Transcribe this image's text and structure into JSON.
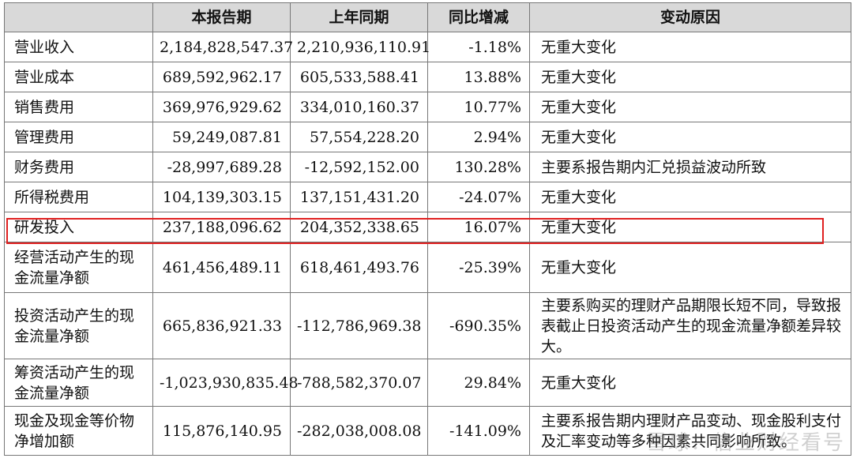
{
  "headers": [
    "",
    "本报告期",
    "上年同期",
    "同比增减",
    "变动原因"
  ],
  "rows": [
    {
      "item": "营业收入",
      "current": "2,184,828,547.37",
      "prior": "2,210,936,110.91",
      "change": "-1.18%",
      "reason": "无重大变化"
    },
    {
      "item": "营业成本",
      "current": "689,592,962.17",
      "prior": "605,533,588.41",
      "change": "13.88%",
      "reason": "无重大变化"
    },
    {
      "item": "销售费用",
      "current": "369,976,929.62",
      "prior": "334,010,160.37",
      "change": "10.77%",
      "reason": "无重大变化"
    },
    {
      "item": "管理费用",
      "current": "59,249,087.81",
      "prior": "57,554,228.20",
      "change": "2.94%",
      "reason": "无重大变化"
    },
    {
      "item": "财务费用",
      "current": "-28,997,689.28",
      "prior": "-12,592,152.00",
      "change": "130.28%",
      "reason": "主要系报告期内汇兑损益波动所致"
    },
    {
      "item": "所得税费用",
      "current": "104,139,303.15",
      "prior": "137,151,431.20",
      "change": "-24.07%",
      "reason": "无重大变化"
    },
    {
      "item": "研发投入",
      "current": "237,188,096.62",
      "prior": "204,352,338.65",
      "change": "16.07%",
      "reason": "无重大变化"
    },
    {
      "item": "经营活动产生的现金流量净额",
      "current": "461,456,489.11",
      "prior": "618,461,493.76",
      "change": "-25.39%",
      "reason": "无重大变化"
    },
    {
      "item": "投资活动产生的现金流量净额",
      "current": "665,836,921.33",
      "prior": "-112,786,969.38",
      "change": "-690.35%",
      "reason": "主要系购买的理财产品期限长短不同，导致报表截止日投资活动产生的现金流量净额差异较大。"
    },
    {
      "item": "筹资活动产生的现金流量净额",
      "current": "-1,023,930,835.48",
      "prior": "-788,582,370.07",
      "change": "29.84%",
      "reason": "无重大变化"
    },
    {
      "item": "现金及现金等价物净增加额",
      "current": "115,876,140.95",
      "prior": "-282,038,008.08",
      "change": "-141.09%",
      "reason": "主要系报告期内理财产品变动、现金股利支付及汇率变动等多种因素共同影响所致。"
    }
  ],
  "highlight_colour": "#e02020",
  "watermark": "雪球：信业财经看号"
}
